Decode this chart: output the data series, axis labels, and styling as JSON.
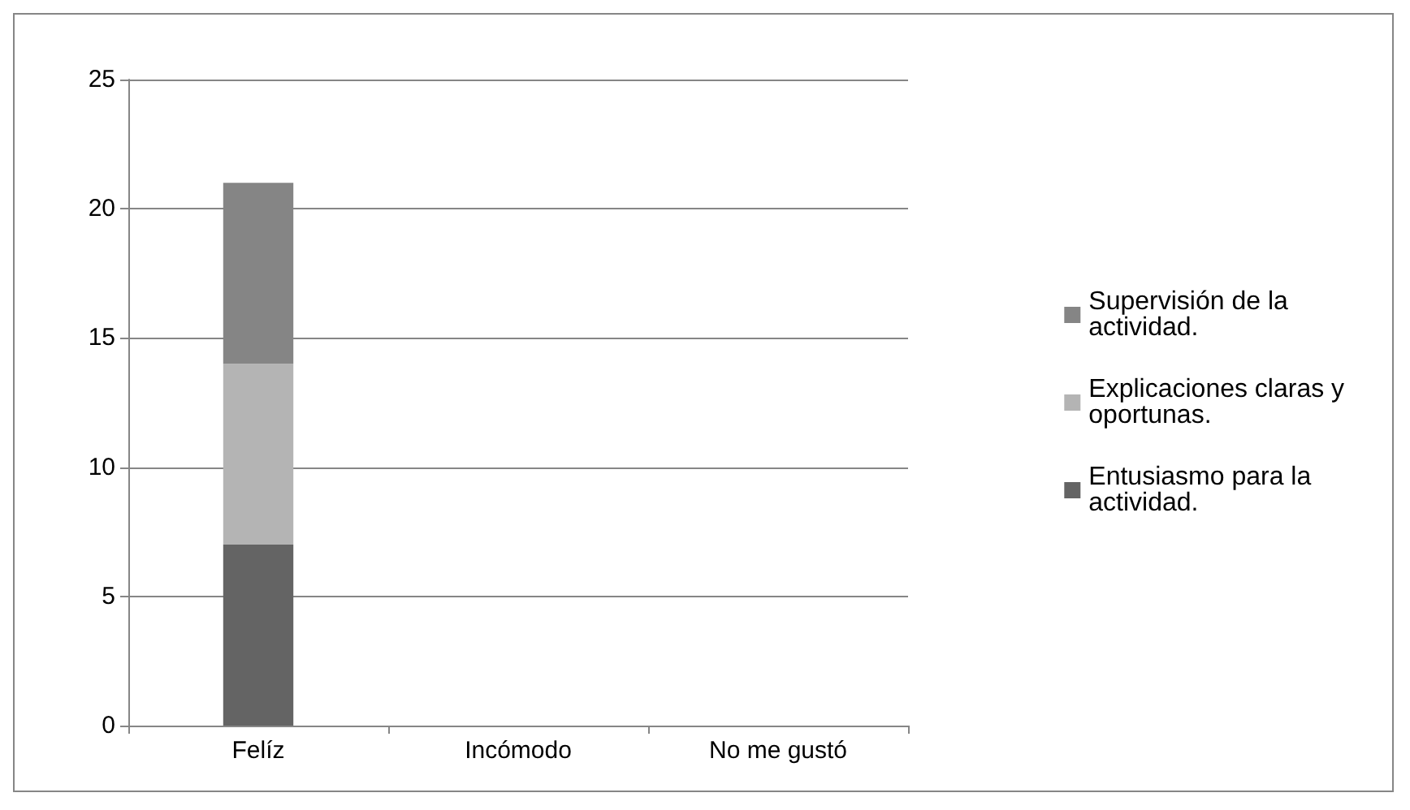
{
  "chart_data": {
    "type": "bar",
    "stacked": true,
    "categories": [
      "Felíz",
      "Incómodo",
      "No me gustó"
    ],
    "series": [
      {
        "name": "Entusiasmo para la actividad.",
        "color": "#646464",
        "values": [
          7,
          0,
          0
        ]
      },
      {
        "name": "Explicaciones claras y oportunas.",
        "color": "#b4b4b4",
        "values": [
          7,
          0,
          0
        ]
      },
      {
        "name": "Supervisión de la actividad.",
        "color": "#858585",
        "values": [
          7,
          0,
          0
        ]
      }
    ],
    "ylim": [
      0,
      25
    ],
    "yticks": [
      0,
      5,
      10,
      15,
      20,
      25
    ],
    "grid": "y",
    "legend": "right"
  }
}
